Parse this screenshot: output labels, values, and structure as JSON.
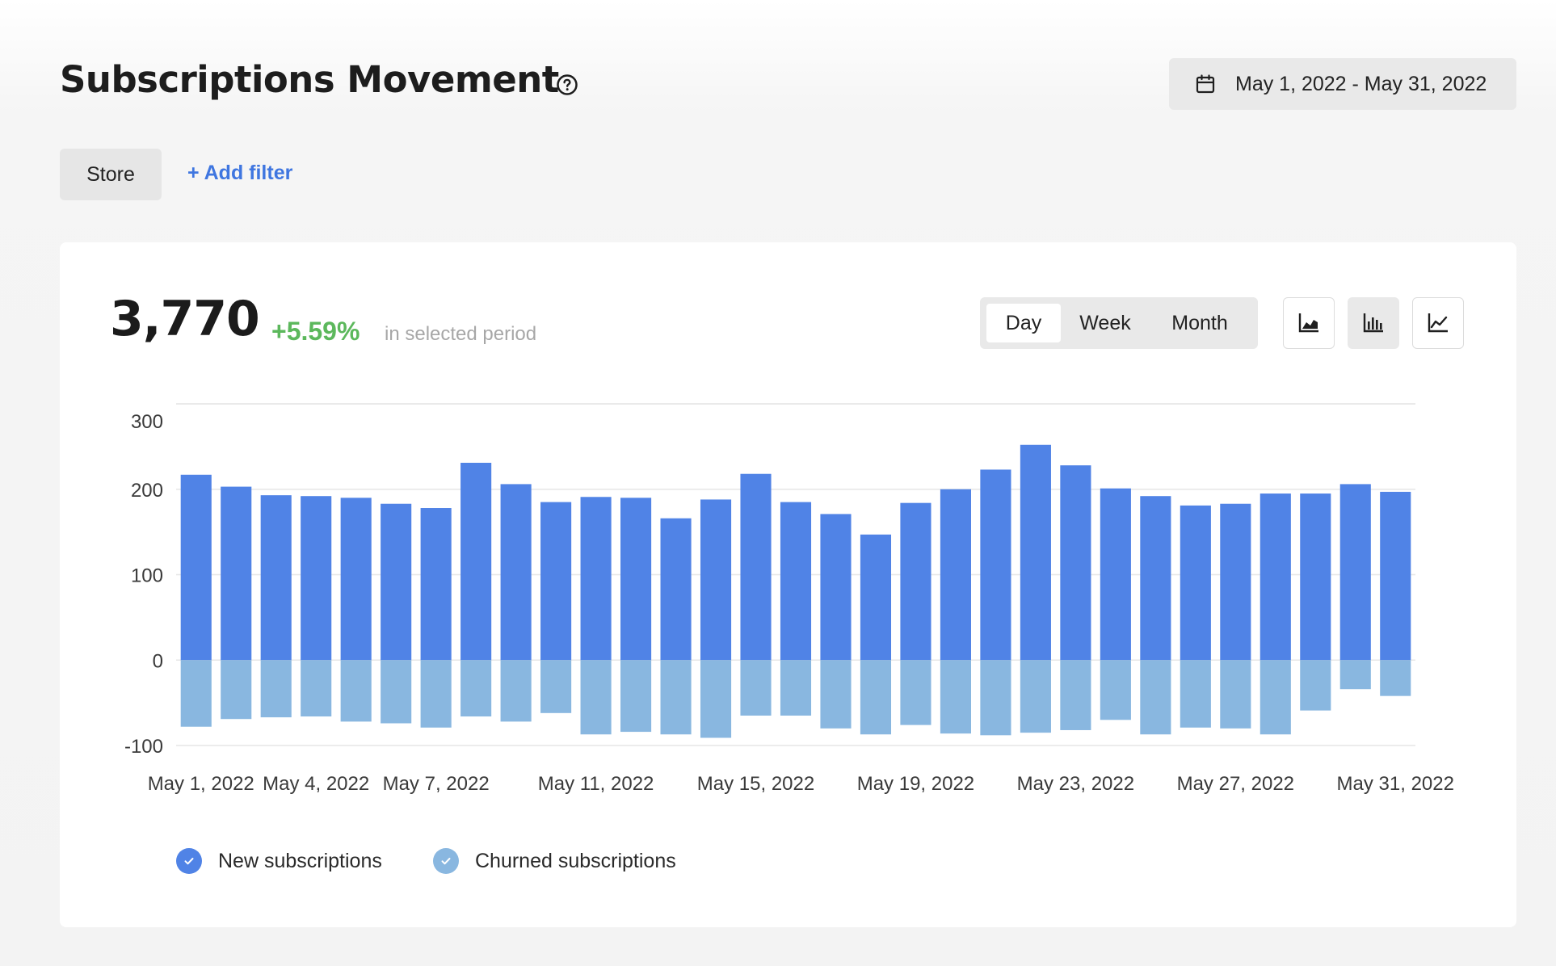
{
  "header": {
    "title": "Subscriptions Movement",
    "date_range": "May 1, 2022 - May 31, 2022"
  },
  "filters": {
    "store_label": "Store",
    "add_filter_label": "+ Add filter"
  },
  "summary": {
    "value": "3,770",
    "change": "+5.59%",
    "label": "in selected period"
  },
  "period_toggle": {
    "options": [
      "Day",
      "Week",
      "Month"
    ],
    "selected": "Day"
  },
  "chart_types": {
    "options": [
      "area-chart-icon",
      "bar-chart-icon",
      "line-chart-icon"
    ],
    "selected": "bar-chart-icon"
  },
  "colors": {
    "new": "#5083e6",
    "churned": "#89b7e0",
    "positive_change": "#5cb85c",
    "link": "#3f76e0"
  },
  "chart_data": {
    "type": "bar",
    "categories": [
      "May 1, 2022",
      "May 2, 2022",
      "May 3, 2022",
      "May 4, 2022",
      "May 5, 2022",
      "May 6, 2022",
      "May 7, 2022",
      "May 8, 2022",
      "May 9, 2022",
      "May 10, 2022",
      "May 11, 2022",
      "May 12, 2022",
      "May 13, 2022",
      "May 14, 2022",
      "May 15, 2022",
      "May 16, 2022",
      "May 17, 2022",
      "May 18, 2022",
      "May 19, 2022",
      "May 20, 2022",
      "May 21, 2022",
      "May 22, 2022",
      "May 23, 2022",
      "May 24, 2022",
      "May 25, 2022",
      "May 26, 2022",
      "May 27, 2022",
      "May 28, 2022",
      "May 29, 2022",
      "May 30, 2022",
      "May 31, 2022"
    ],
    "series": [
      {
        "name": "New subscriptions",
        "values": [
          217,
          203,
          193,
          192,
          190,
          183,
          178,
          231,
          206,
          185,
          191,
          190,
          166,
          188,
          218,
          185,
          171,
          147,
          184,
          200,
          223,
          252,
          228,
          201,
          192,
          181,
          183,
          195,
          195,
          206,
          197
        ]
      },
      {
        "name": "Churned subscriptions",
        "values": [
          -78,
          -69,
          -67,
          -66,
          -72,
          -74,
          -79,
          -66,
          -72,
          -62,
          -87,
          -84,
          -87,
          -91,
          -65,
          -65,
          -80,
          -87,
          -76,
          -86,
          -88,
          -85,
          -82,
          -70,
          -87,
          -79,
          -80,
          -87,
          -59,
          -34,
          -42
        ]
      }
    ],
    "xticks": [
      "May 1, 2022",
      "May 4, 2022",
      "May 7, 2022",
      "May 11, 2022",
      "May 15, 2022",
      "May 19, 2022",
      "May 23, 2022",
      "May 27, 2022",
      "May 31, 2022"
    ],
    "yticks": [
      300,
      200,
      100,
      0,
      -100
    ],
    "ylim": [
      -100,
      300
    ],
    "grid": true,
    "legend_position": "bottom-left"
  }
}
